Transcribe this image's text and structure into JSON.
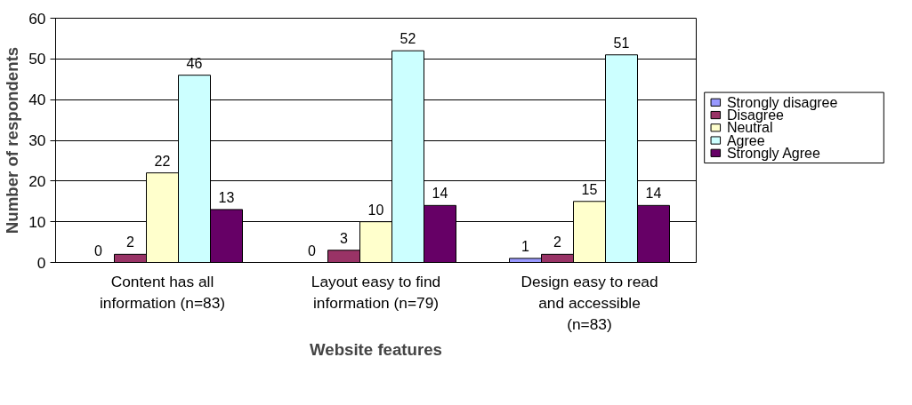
{
  "chart_data": {
    "type": "bar",
    "xlabel": "Website features",
    "ylabel": "Number of respondents",
    "categories": [
      "Content has all information (n=83)",
      "Layout easy to find information (n=79)",
      "Design easy to read and accessible (n=83)"
    ],
    "series": [
      {
        "name": "Strongly disagree",
        "color": "#9999ff",
        "values": [
          0,
          0,
          1
        ]
      },
      {
        "name": "Disagree",
        "color": "#993366",
        "values": [
          2,
          3,
          2
        ]
      },
      {
        "name": "Neutral",
        "color": "#ffffcc",
        "values": [
          22,
          10,
          15
        ]
      },
      {
        "name": "Agree",
        "color": "#ccffff",
        "values": [
          46,
          52,
          51
        ]
      },
      {
        "name": "Strongly Agree",
        "color": "#660066",
        "values": [
          13,
          14,
          14
        ]
      }
    ],
    "ylim": [
      0,
      60
    ],
    "yticks": [
      0,
      10,
      20,
      30,
      40,
      50,
      60
    ],
    "grid": "y",
    "legend": "right",
    "data_labels": true
  }
}
